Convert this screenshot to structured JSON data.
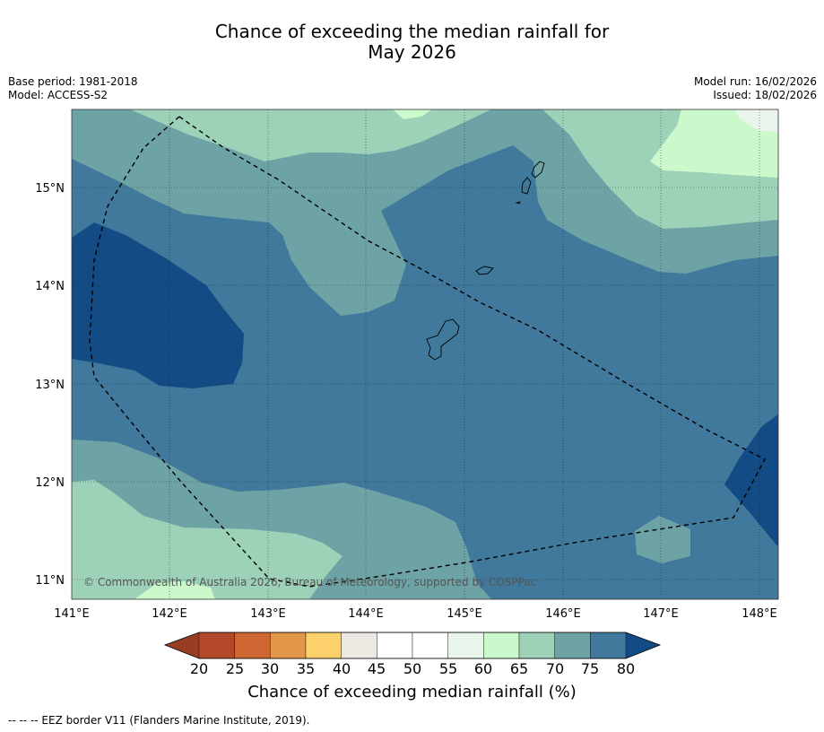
{
  "title": {
    "line1": "Chance of exceeding the median rainfall for",
    "line2": "May 2026"
  },
  "meta": {
    "base_period": "Base period: 1981-2018",
    "model": "Model: ACCESS-S2",
    "model_run": "Model run: 16/02/2026",
    "issued": "Issued: 18/02/2026"
  },
  "map": {
    "lat_labels": [
      "15°N",
      "14°N",
      "13°N",
      "12°N",
      "11°N"
    ],
    "lon_labels": [
      "141°E",
      "142°E",
      "143°E",
      "144°E",
      "145°E",
      "146°E",
      "147°E",
      "148°E"
    ],
    "copyright": "© Commonwealth of Australia 2026, Bureau of Meteorology, supported by COSPPac",
    "colors": {
      "c80plus": "#134b85",
      "c75": "#40799b",
      "c70": "#6ea3a6",
      "c65": "#9dd1b8",
      "c60": "#ccf9cc",
      "c55": "#e9f5ea"
    }
  },
  "colorbar": {
    "ticks": [
      "20",
      "25",
      "30",
      "35",
      "40",
      "45",
      "50",
      "55",
      "60",
      "65",
      "70",
      "75",
      "80"
    ],
    "colors": [
      "#b3492a",
      "#cd6632",
      "#e3974a",
      "#fcd06a",
      "#ece8e2",
      "#ffffff",
      "#ffffff",
      "#e9f5ea",
      "#ccf9cc",
      "#9dd1b8",
      "#6ea3a6",
      "#40799b"
    ],
    "under_color": "#973d22",
    "over_color": "#134b85",
    "title": "Chance of exceeding median rainfall (%)"
  },
  "footnote": "--  --  -- EEZ border V11 (Flanders Marine Institute, 2019)."
}
